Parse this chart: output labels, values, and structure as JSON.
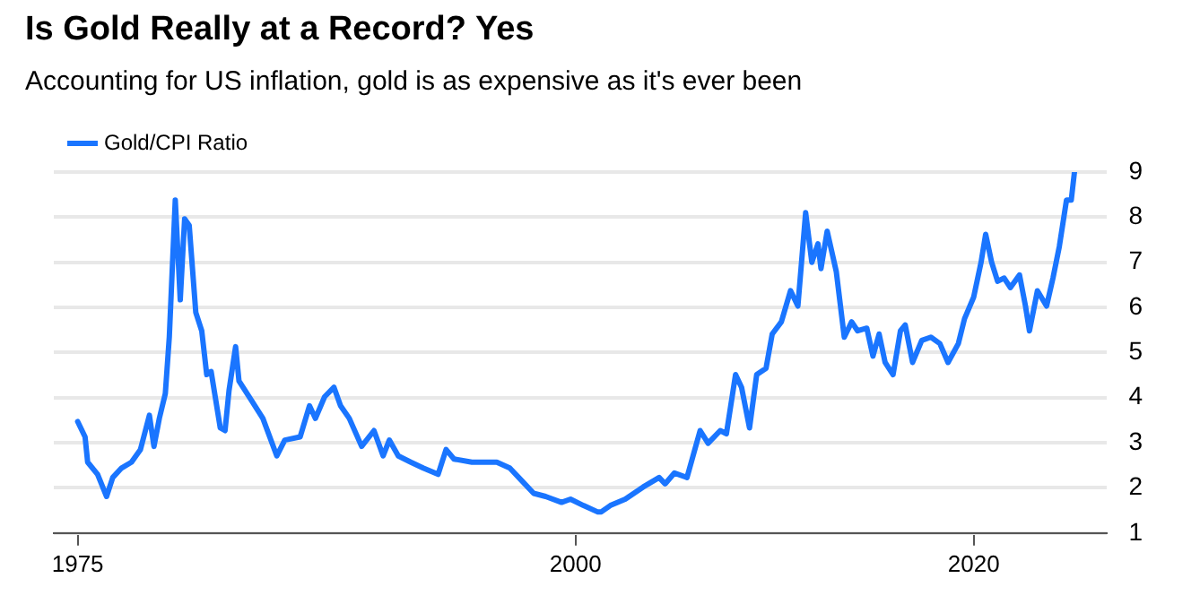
{
  "chart_data": {
    "type": "line",
    "title": "Is Gold Really at a Record? Yes",
    "subtitle": "Accounting for US inflation, gold is as expensive as it's ever been",
    "x": [
      1975.0,
      1975.37,
      1975.5,
      1976.0,
      1976.45,
      1976.76,
      1977.2,
      1977.7,
      1978.15,
      1978.6,
      1978.83,
      1979.1,
      1979.4,
      1979.6,
      1979.9,
      1980.15,
      1980.37,
      1980.6,
      1980.93,
      1981.23,
      1981.48,
      1981.7,
      1982.16,
      1982.4,
      1982.6,
      1982.93,
      1983.1,
      1983.7,
      1984.3,
      1985.0,
      1985.4,
      1986.17,
      1986.64,
      1986.94,
      1987.4,
      1987.87,
      1988.2,
      1988.64,
      1989.26,
      1989.88,
      1990.34,
      1990.65,
      1991.1,
      1991.73,
      1992.35,
      1993.1,
      1993.5,
      1993.9,
      1994.8,
      1996.05,
      1996.7,
      1997.3,
      1997.9,
      1998.5,
      1999.3,
      1999.75,
      2000.4,
      2001.1,
      2001.3,
      2001.75,
      2002.5,
      2003.4,
      2004.2,
      2004.5,
      2004.97,
      2005.6,
      2006.26,
      2006.66,
      2007.27,
      2007.58,
      2008.04,
      2008.34,
      2008.74,
      2009.1,
      2009.57,
      2009.88,
      2010.34,
      2010.8,
      2011.17,
      2011.56,
      2011.87,
      2012.18,
      2012.33,
      2012.64,
      2013.1,
      2013.5,
      2013.87,
      2014.17,
      2014.63,
      2014.94,
      2015.25,
      2015.55,
      2015.95,
      2016.32,
      2016.56,
      2016.93,
      2017.39,
      2017.85,
      2018.3,
      2018.71,
      2019.23,
      2019.54,
      2020.0,
      2020.37,
      2020.6,
      2020.9,
      2021.2,
      2021.53,
      2021.84,
      2022.3,
      2022.6,
      2022.8,
      2023.2,
      2023.66,
      2023.98,
      2024.3,
      2024.66,
      2024.9,
      2025.06
    ],
    "series": [
      {
        "name": "Gold/CPI Ratio",
        "color": "#1a75ff",
        "values": [
          3.47,
          3.13,
          2.57,
          2.3,
          1.81,
          2.23,
          2.44,
          2.57,
          2.85,
          3.61,
          2.92,
          3.54,
          4.09,
          5.34,
          8.38,
          6.17,
          7.96,
          7.82,
          5.89,
          5.48,
          4.51,
          4.58,
          3.33,
          3.27,
          4.16,
          5.13,
          4.37,
          3.96,
          3.54,
          2.71,
          3.06,
          3.13,
          3.82,
          3.54,
          4.02,
          4.23,
          3.82,
          3.54,
          2.92,
          3.27,
          2.71,
          3.06,
          2.71,
          2.57,
          2.44,
          2.3,
          2.85,
          2.64,
          2.57,
          2.57,
          2.44,
          2.16,
          1.88,
          1.81,
          1.68,
          1.75,
          1.61,
          1.47,
          1.47,
          1.61,
          1.75,
          2.02,
          2.23,
          2.09,
          2.33,
          2.23,
          3.27,
          2.99,
          3.27,
          3.2,
          4.51,
          4.23,
          3.33,
          4.51,
          4.65,
          5.41,
          5.68,
          6.37,
          6.03,
          8.1,
          7.0,
          7.41,
          6.86,
          7.69,
          6.79,
          5.34,
          5.68,
          5.48,
          5.54,
          4.92,
          5.41,
          4.78,
          4.51,
          5.48,
          5.61,
          4.78,
          5.27,
          5.34,
          5.2,
          4.78,
          5.2,
          5.75,
          6.23,
          7.0,
          7.62,
          7.0,
          6.58,
          6.65,
          6.44,
          6.72,
          6.03,
          5.48,
          6.37,
          6.03,
          6.65,
          7.35,
          8.38,
          8.38,
          9.0
        ]
      }
    ],
    "xlim": [
      1973.8,
      2026.7
    ],
    "xticks": [
      1975,
      2000,
      2020
    ],
    "ylim": [
      1,
      9
    ],
    "yticks": [
      1,
      2,
      3,
      4,
      5,
      6,
      7,
      8,
      9
    ],
    "grid": "y",
    "legend": "top left",
    "line_style": "solid",
    "marker": "none"
  }
}
